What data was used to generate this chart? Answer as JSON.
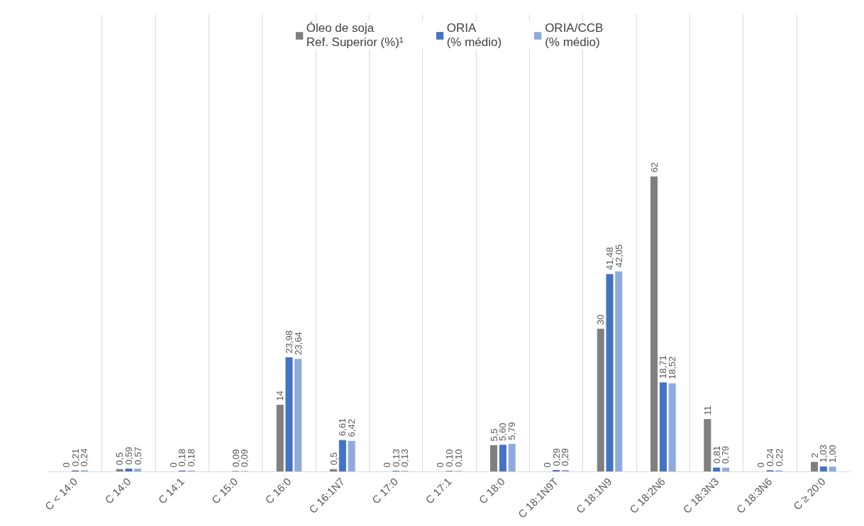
{
  "chart_data": {
    "type": "bar",
    "categories": [
      "C < 14:0",
      "C 14:0",
      "C 14:1",
      "C 15:0",
      "C 16:0",
      "C 16:1N7",
      "C 17:0",
      "C 17:1",
      "C 18:0",
      "C 18:1N9T",
      "C 18:1N9",
      "C 18:2N6",
      "C 18:3N3",
      "C 18:3N6",
      "C ≥ 20:0"
    ],
    "series": [
      {
        "name": "Óleo de soja\nRef. Superior (%)¹",
        "color": "#7f7f7f",
        "values": [
          0,
          0.5,
          0,
          null,
          14,
          0.5,
          0,
          0,
          5.5,
          0,
          30,
          62,
          11,
          0,
          2
        ],
        "value_labels": [
          "0",
          "0,5",
          "0",
          null,
          "14",
          "0,5",
          "0",
          "0",
          "5,5",
          "0",
          "30",
          "62",
          "11",
          "0",
          "2"
        ]
      },
      {
        "name": "ORIA\n(% médio)",
        "color": "#4472c4",
        "values": [
          0.21,
          0.59,
          0.18,
          0.09,
          23.98,
          6.61,
          0.13,
          0.1,
          5.6,
          0.29,
          41.48,
          18.71,
          0.81,
          0.24,
          1.03
        ],
        "value_labels": [
          "0,21",
          "0,59",
          "0,18",
          "0,09",
          "23,98",
          "6,61",
          "0,13",
          "0,10",
          "5,60",
          "0,29",
          "41,48",
          "18,71",
          "0,81",
          "0,24",
          "1,03"
        ]
      },
      {
        "name": "ORIA/CCB\n(% médio)",
        "color": "#8faadc",
        "values": [
          0.24,
          0.57,
          0.18,
          0.09,
          23.64,
          6.42,
          0.13,
          0.1,
          5.79,
          0.29,
          42.05,
          18.52,
          0.79,
          0.22,
          1.0
        ],
        "value_labels": [
          "0,24",
          "0,57",
          "0,18",
          "0,09",
          "23,64",
          "6,42",
          "0,13",
          "0,10",
          "5,79",
          "0,29",
          "42,05",
          "18,52",
          "0,79",
          "0,22",
          "1,00"
        ]
      }
    ],
    "grid": "x",
    "legend": "top"
  }
}
